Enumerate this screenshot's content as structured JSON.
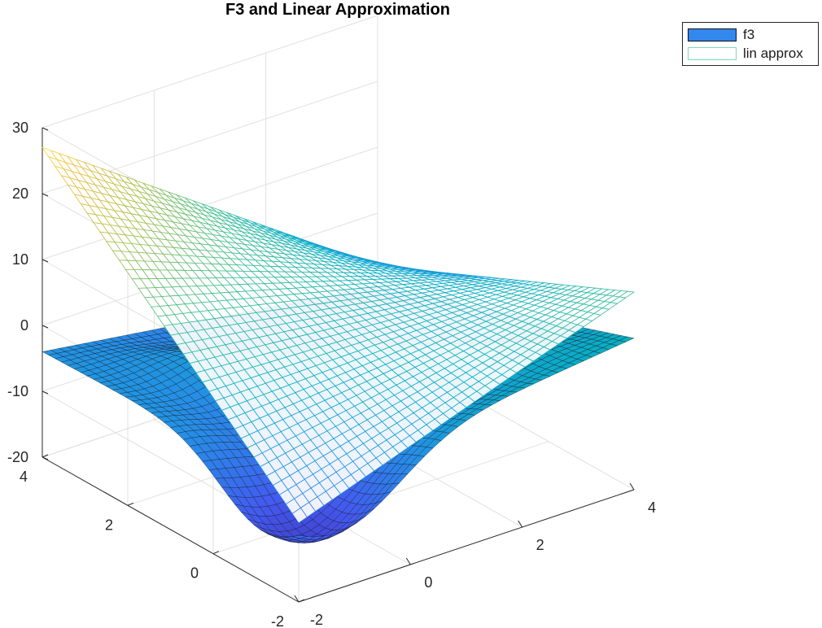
{
  "chart_data": {
    "type": "surface",
    "title": "F3 and Linear Approximation",
    "xlabel": "",
    "ylabel": "",
    "zlabel": "",
    "xlim": [
      -2,
      4
    ],
    "ylim": [
      -2,
      4
    ],
    "zlim": [
      -20,
      30
    ],
    "x_ticks": [
      "-2",
      "0",
      "2",
      "4"
    ],
    "y_ticks": [
      "-2",
      "0",
      "2",
      "4"
    ],
    "z_ticks": [
      "30",
      "20",
      "10",
      "0",
      "-10",
      "-20"
    ],
    "grid": true,
    "colormap": "parula",
    "legend_placement": "top-right (outside)",
    "series": [
      {
        "name": "f3",
        "style": "filled surface with black mesh",
        "swatch_color": "#3388ee",
        "corner_z": {
          "x-2_y-2": -3,
          "x4_y-2": 3,
          "x-2_y4": -4,
          "x4_y4": -11
        },
        "min_z": -18,
        "min_at": [
          -1.2,
          -1.2
        ]
      },
      {
        "name": "lin approx",
        "style": "mesh (wireframe only)",
        "swatch_color": "#7ddbb8",
        "corner_z": {
          "x-2_y-2": -8,
          "x4_y-2": 10,
          "x-2_y4": 27,
          "x4_y4": -8
        }
      }
    ]
  }
}
